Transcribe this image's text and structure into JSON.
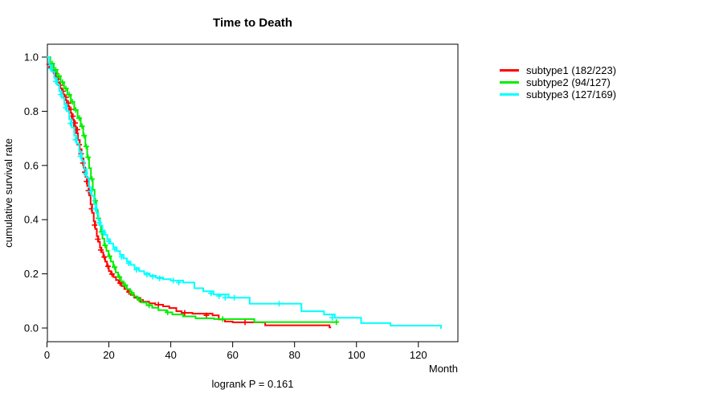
{
  "title": "Time to Death",
  "xlabel": "Month",
  "ylabel": "cumulative survival rate",
  "footer": "logrank P = 0.161",
  "chart_data": {
    "type": "line",
    "subtype": "kaplan-meier-step-curves",
    "title": "Time to Death",
    "xlabel": "Month",
    "ylabel": "cumulative survival rate",
    "annotation": "logrank P = 0.161",
    "grid": false,
    "legend_position": "right-outside",
    "xlim": [
      0,
      132
    ],
    "ylim": [
      0,
      1.04
    ],
    "x_tick_values": [
      0,
      20,
      40,
      60,
      80,
      100,
      120
    ],
    "x_tick_labels": [
      "0",
      "20",
      "40",
      "60",
      "80",
      "100",
      "120"
    ],
    "y_tick_values": [
      0,
      0.2,
      0.4,
      0.6,
      0.8,
      1.0
    ],
    "y_tick_labels": [
      "0.0",
      "0.2",
      "0.4",
      "0.6",
      "0.8",
      "1.0"
    ],
    "series": [
      {
        "name": "subtype1",
        "label": "subtype1 (182/223)",
        "color": "#ff0000",
        "end_month": 91.8,
        "steps": [
          [
            0,
            1
          ],
          [
            0.8,
            0.973
          ],
          [
            1.6,
            0.951
          ],
          [
            2.4,
            0.929
          ],
          [
            3.2,
            0.907
          ],
          [
            4,
            0.885
          ],
          [
            4.8,
            0.863
          ],
          [
            5.6,
            0.841
          ],
          [
            6.4,
            0.819
          ],
          [
            7.2,
            0.794
          ],
          [
            8,
            0.769
          ],
          [
            8.7,
            0.744
          ],
          [
            9.4,
            0.719
          ],
          [
            10,
            0.694
          ],
          [
            10.6,
            0.66
          ],
          [
            11.2,
            0.626
          ],
          [
            11.8,
            0.592
          ],
          [
            12.4,
            0.558
          ],
          [
            13,
            0.524
          ],
          [
            13.6,
            0.49
          ],
          [
            14.1,
            0.456
          ],
          [
            14.6,
            0.425
          ],
          [
            15.1,
            0.394
          ],
          [
            15.6,
            0.366
          ],
          [
            16.1,
            0.339
          ],
          [
            16.6,
            0.318
          ],
          [
            17.1,
            0.297
          ],
          [
            17.6,
            0.28
          ],
          [
            18.2,
            0.262
          ],
          [
            18.8,
            0.245
          ],
          [
            19.4,
            0.228
          ],
          [
            20,
            0.21
          ],
          [
            20.7,
            0.199
          ],
          [
            21.5,
            0.188
          ],
          [
            22.3,
            0.177
          ],
          [
            23.2,
            0.166
          ],
          [
            24.1,
            0.155
          ],
          [
            25,
            0.144
          ],
          [
            26,
            0.133
          ],
          [
            27.1,
            0.122
          ],
          [
            28.2,
            0.112
          ],
          [
            29.5,
            0.104
          ],
          [
            31,
            0.097
          ],
          [
            33,
            0.091
          ],
          [
            35,
            0.086
          ],
          [
            37.5,
            0.08
          ],
          [
            39.5,
            0.074
          ],
          [
            41.8,
            0.062
          ],
          [
            43.5,
            0.056
          ],
          [
            47,
            0.053
          ],
          [
            53.5,
            0.047
          ],
          [
            55.5,
            0.032
          ],
          [
            57.5,
            0.024
          ],
          [
            60,
            0.021
          ],
          [
            70.5,
            0.01
          ],
          [
            91.3,
            0.002
          ]
        ],
        "censors": [
          [
            0.7,
            0.973
          ],
          [
            1.3,
            0.962
          ],
          [
            2.1,
            0.951
          ],
          [
            2.8,
            0.94
          ],
          [
            3.5,
            0.918
          ],
          [
            4.3,
            0.896
          ],
          [
            5.2,
            0.874
          ],
          [
            6.1,
            0.852
          ],
          [
            6.9,
            0.83
          ],
          [
            7.7,
            0.807
          ],
          [
            8.4,
            0.782
          ],
          [
            9.1,
            0.757
          ],
          [
            9.8,
            0.732
          ],
          [
            10.4,
            0.677
          ],
          [
            11,
            0.643
          ],
          [
            11.6,
            0.609
          ],
          [
            12.2,
            0.575
          ],
          [
            12.8,
            0.541
          ],
          [
            13.4,
            0.507
          ],
          [
            14.4,
            0.44
          ],
          [
            15.4,
            0.38
          ],
          [
            16.4,
            0.328
          ],
          [
            17.4,
            0.288
          ],
          [
            18.5,
            0.262
          ],
          [
            19.7,
            0.228
          ],
          [
            21,
            0.199
          ],
          [
            23.6,
            0.166
          ],
          [
            26.5,
            0.133
          ],
          [
            30.2,
            0.104
          ],
          [
            36,
            0.086
          ],
          [
            44.5,
            0.056
          ],
          [
            51.5,
            0.047
          ],
          [
            64,
            0.021
          ]
        ]
      },
      {
        "name": "subtype2",
        "label": "subtype2 (94/127)",
        "color": "#00ee00",
        "end_month": 94,
        "steps": [
          [
            0,
            1
          ],
          [
            1.1,
            0.976
          ],
          [
            2.2,
            0.953
          ],
          [
            3.3,
            0.93
          ],
          [
            4.4,
            0.907
          ],
          [
            5.5,
            0.884
          ],
          [
            6.6,
            0.861
          ],
          [
            7.7,
            0.835
          ],
          [
            8.8,
            0.805
          ],
          [
            9.9,
            0.775
          ],
          [
            10.9,
            0.745
          ],
          [
            11.7,
            0.71
          ],
          [
            12.4,
            0.67
          ],
          [
            13,
            0.63
          ],
          [
            13.6,
            0.59
          ],
          [
            14.2,
            0.55
          ],
          [
            14.8,
            0.51
          ],
          [
            15.4,
            0.47
          ],
          [
            15.9,
            0.435
          ],
          [
            16.4,
            0.405
          ],
          [
            16.9,
            0.38
          ],
          [
            17.4,
            0.355
          ],
          [
            17.9,
            0.33
          ],
          [
            18.5,
            0.305
          ],
          [
            19.2,
            0.285
          ],
          [
            19.9,
            0.265
          ],
          [
            20.6,
            0.245
          ],
          [
            21.4,
            0.225
          ],
          [
            22.2,
            0.205
          ],
          [
            23,
            0.188
          ],
          [
            23.9,
            0.172
          ],
          [
            24.8,
            0.158
          ],
          [
            25.8,
            0.144
          ],
          [
            26.9,
            0.13
          ],
          [
            28,
            0.117
          ],
          [
            29.2,
            0.105
          ],
          [
            30.6,
            0.094
          ],
          [
            32.2,
            0.084
          ],
          [
            34,
            0.075
          ],
          [
            36,
            0.066
          ],
          [
            38.5,
            0.058
          ],
          [
            40.5,
            0.05
          ],
          [
            44,
            0.043
          ],
          [
            48,
            0.036
          ],
          [
            54,
            0.033
          ],
          [
            67,
            0.022
          ]
        ],
        "censors": [
          [
            1.7,
            0.976
          ],
          [
            2.8,
            0.953
          ],
          [
            3.9,
            0.93
          ],
          [
            5,
            0.907
          ],
          [
            6.1,
            0.884
          ],
          [
            7.2,
            0.861
          ],
          [
            8.2,
            0.835
          ],
          [
            9.3,
            0.805
          ],
          [
            10.4,
            0.775
          ],
          [
            11.3,
            0.745
          ],
          [
            12,
            0.71
          ],
          [
            12.7,
            0.67
          ],
          [
            13.3,
            0.63
          ],
          [
            14.5,
            0.55
          ],
          [
            15.6,
            0.47
          ],
          [
            16.6,
            0.405
          ],
          [
            17.6,
            0.355
          ],
          [
            18.8,
            0.305
          ],
          [
            20.2,
            0.265
          ],
          [
            21.8,
            0.225
          ],
          [
            23.4,
            0.188
          ],
          [
            25.3,
            0.158
          ],
          [
            27.4,
            0.13
          ],
          [
            29.8,
            0.105
          ],
          [
            33,
            0.084
          ],
          [
            39,
            0.058
          ],
          [
            56.8,
            0.033
          ],
          [
            93.5,
            0.022
          ]
        ]
      },
      {
        "name": "subtype3",
        "label": "subtype3 (127/169)",
        "color": "#00ffff",
        "end_month": 127.5,
        "steps": [
          [
            0,
            1
          ],
          [
            0.8,
            0.97
          ],
          [
            1.6,
            0.946
          ],
          [
            2.4,
            0.922
          ],
          [
            3.2,
            0.898
          ],
          [
            4,
            0.874
          ],
          [
            4.8,
            0.85
          ],
          [
            5.6,
            0.826
          ],
          [
            6.4,
            0.8
          ],
          [
            7.2,
            0.77
          ],
          [
            8,
            0.74
          ],
          [
            8.8,
            0.71
          ],
          [
            9.6,
            0.68
          ],
          [
            10.4,
            0.65
          ],
          [
            11.2,
            0.618
          ],
          [
            12,
            0.586
          ],
          [
            12.8,
            0.554
          ],
          [
            13.6,
            0.52
          ],
          [
            14.4,
            0.488
          ],
          [
            15.2,
            0.456
          ],
          [
            16,
            0.424
          ],
          [
            16.6,
            0.398
          ],
          [
            17.2,
            0.378
          ],
          [
            17.9,
            0.36
          ],
          [
            18.7,
            0.344
          ],
          [
            19.5,
            0.328
          ],
          [
            20.4,
            0.312
          ],
          [
            21.4,
            0.298
          ],
          [
            22.5,
            0.284
          ],
          [
            23.6,
            0.27
          ],
          [
            24.7,
            0.257
          ],
          [
            25.8,
            0.245
          ],
          [
            27,
            0.233
          ],
          [
            28.3,
            0.221
          ],
          [
            29.8,
            0.21
          ],
          [
            31.4,
            0.201
          ],
          [
            33.2,
            0.193
          ],
          [
            35.2,
            0.186
          ],
          [
            37.5,
            0.18
          ],
          [
            40,
            0.175
          ],
          [
            44,
            0.168
          ],
          [
            47.6,
            0.147
          ],
          [
            50.5,
            0.136
          ],
          [
            53.8,
            0.124
          ],
          [
            58.7,
            0.112
          ],
          [
            65.5,
            0.09
          ],
          [
            82.2,
            0.062
          ],
          [
            89.5,
            0.05
          ],
          [
            93,
            0.038
          ],
          [
            101.5,
            0.018
          ],
          [
            111,
            0.009
          ],
          [
            127.3,
            0
          ]
        ],
        "censors": [
          [
            1.2,
            0.958
          ],
          [
            2.8,
            0.91
          ],
          [
            4.4,
            0.862
          ],
          [
            6,
            0.813
          ],
          [
            7.6,
            0.755
          ],
          [
            9.2,
            0.695
          ],
          [
            10.8,
            0.634
          ],
          [
            12.4,
            0.57
          ],
          [
            14,
            0.504
          ],
          [
            15.6,
            0.44
          ],
          [
            16.9,
            0.388
          ],
          [
            18.3,
            0.352
          ],
          [
            19.9,
            0.32
          ],
          [
            21.9,
            0.291
          ],
          [
            24.1,
            0.263
          ],
          [
            26.4,
            0.239
          ],
          [
            28.9,
            0.215
          ],
          [
            32.3,
            0.197
          ],
          [
            34.2,
            0.19
          ],
          [
            36.4,
            0.183
          ],
          [
            40.8,
            0.175
          ],
          [
            42.6,
            0.168
          ],
          [
            53,
            0.128
          ],
          [
            55.6,
            0.118
          ],
          [
            57.6,
            0.112
          ],
          [
            60.5,
            0.112
          ],
          [
            75,
            0.09
          ],
          [
            92.2,
            0.038
          ]
        ]
      }
    ]
  }
}
